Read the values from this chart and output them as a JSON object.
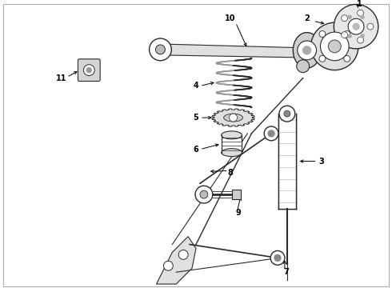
{
  "background_color": "#ffffff",
  "line_color": "#2a2a2a",
  "fig_width": 4.9,
  "fig_height": 3.6,
  "dpi": 100,
  "label_fontsize": 7.0,
  "border_color": "#cccccc"
}
